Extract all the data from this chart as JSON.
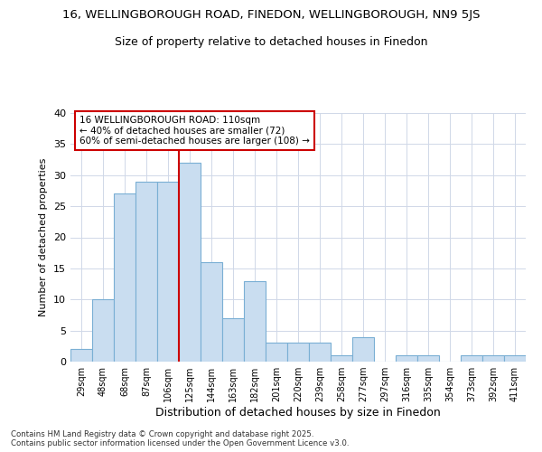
{
  "title1": "16, WELLINGBOROUGH ROAD, FINEDON, WELLINGBOROUGH, NN9 5JS",
  "title2": "Size of property relative to detached houses in Finedon",
  "xlabel": "Distribution of detached houses by size in Finedon",
  "ylabel": "Number of detached properties",
  "bins": [
    "29sqm",
    "48sqm",
    "68sqm",
    "87sqm",
    "106sqm",
    "125sqm",
    "144sqm",
    "163sqm",
    "182sqm",
    "201sqm",
    "220sqm",
    "239sqm",
    "258sqm",
    "277sqm",
    "297sqm",
    "316sqm",
    "335sqm",
    "354sqm",
    "373sqm",
    "392sqm",
    "411sqm"
  ],
  "values": [
    2,
    10,
    27,
    29,
    29,
    32,
    16,
    7,
    13,
    3,
    3,
    3,
    1,
    4,
    0,
    1,
    1,
    0,
    1,
    1,
    1
  ],
  "bar_color": "#c9ddf0",
  "bar_edge_color": "#7aafd4",
  "vline_x": 4.5,
  "vline_color": "#cc0000",
  "annotation_text": "16 WELLINGBOROUGH ROAD: 110sqm\n← 40% of detached houses are smaller (72)\n60% of semi-detached houses are larger (108) →",
  "annotation_box_color": "#ffffff",
  "annotation_box_edge_color": "#cc0000",
  "ylim": [
    0,
    40
  ],
  "yticks": [
    0,
    5,
    10,
    15,
    20,
    25,
    30,
    35,
    40
  ],
  "footer": "Contains HM Land Registry data © Crown copyright and database right 2025.\nContains public sector information licensed under the Open Government Licence v3.0.",
  "background_color": "#ffffff",
  "plot_background_color": "#ffffff",
  "grid_color": "#d0d8e8"
}
